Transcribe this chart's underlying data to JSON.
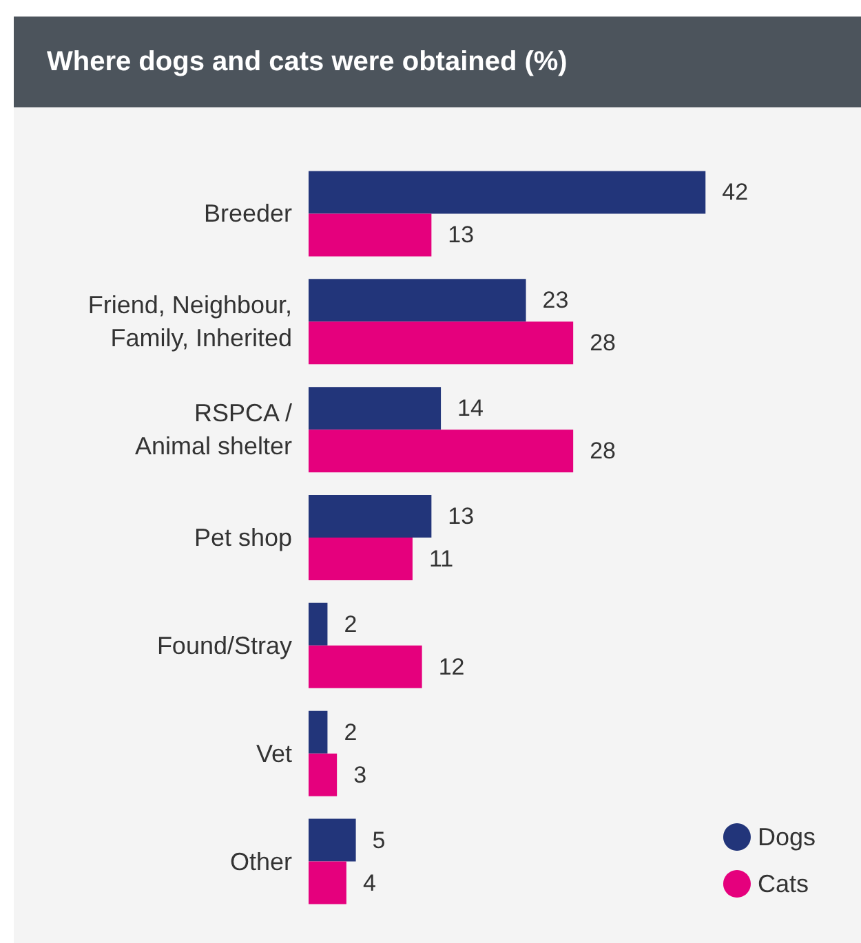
{
  "chart_data": {
    "type": "bar",
    "orientation": "horizontal",
    "title": "Where dogs and cats were obtained (%)",
    "categories": [
      "Breeder",
      "Friend, Neighbour,\nFamily, Inherited",
      "RSPCA /\nAnimal shelter",
      "Pet shop",
      "Found/Stray",
      "Vet",
      "Other"
    ],
    "series": [
      {
        "name": "Dogs",
        "color": "#22357a",
        "values": [
          42,
          23,
          14,
          13,
          2,
          2,
          5
        ]
      },
      {
        "name": "Cats",
        "color": "#e5007d",
        "values": [
          13,
          28,
          28,
          11,
          12,
          3,
          4
        ]
      }
    ],
    "data_labels": true,
    "legend": "bottom right",
    "tick_labels": "y"
  }
}
